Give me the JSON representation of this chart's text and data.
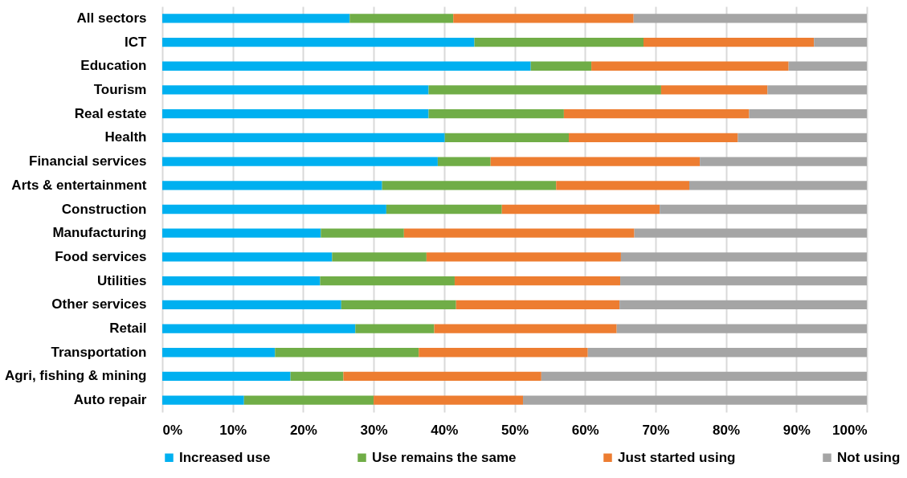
{
  "chart_data": {
    "type": "bar",
    "orientation": "horizontal",
    "stacked": true,
    "categories": [
      "All sectors",
      "ICT",
      "Education",
      "Tourism",
      "Real estate",
      "Health",
      "Financial services",
      "Arts & entertainment",
      "Construction",
      "Manufacturing",
      "Food services",
      "Utilities",
      "Other services",
      "Retail",
      "Transportation",
      "Agri, fishing & mining",
      "Auto repair"
    ],
    "series": [
      {
        "name": "Increased use",
        "color": "#00b0f0",
        "values": [
          26.6,
          44.3,
          52.3,
          37.8,
          37.8,
          40.1,
          39.1,
          31.2,
          31.8,
          22.5,
          24.1,
          22.4,
          25.4,
          27.4,
          16.0,
          18.2,
          11.6
        ]
      },
      {
        "name": "Use remains the same",
        "color": "#70ad47",
        "values": [
          14.7,
          24.0,
          8.6,
          33.0,
          19.2,
          17.6,
          7.5,
          24.7,
          16.4,
          11.8,
          13.4,
          19.1,
          16.3,
          11.2,
          20.4,
          7.5,
          18.4
        ]
      },
      {
        "name": "Just started using",
        "color": "#ed7d31",
        "values": [
          25.6,
          24.2,
          28.0,
          15.1,
          26.3,
          24.0,
          29.7,
          18.9,
          22.4,
          32.7,
          27.6,
          23.5,
          23.2,
          25.9,
          24.0,
          28.1,
          21.2
        ]
      },
      {
        "name": "Not using",
        "color": "#a5a5a5",
        "values": [
          33.1,
          7.5,
          11.1,
          14.1,
          16.7,
          18.3,
          23.7,
          25.2,
          29.4,
          33.0,
          34.9,
          35.0,
          35.1,
          35.5,
          39.6,
          46.2,
          48.8
        ]
      }
    ],
    "xlim": [
      0,
      100
    ],
    "xticks": [
      {
        "value": 0,
        "label": "0%"
      },
      {
        "value": 10,
        "label": "10%"
      },
      {
        "value": 20,
        "label": "20%"
      },
      {
        "value": 30,
        "label": "30%"
      },
      {
        "value": 40,
        "label": "40%"
      },
      {
        "value": 50,
        "label": "50%"
      },
      {
        "value": 60,
        "label": "60%"
      },
      {
        "value": 70,
        "label": "70%"
      },
      {
        "value": 80,
        "label": "80%"
      },
      {
        "value": 90,
        "label": "90%"
      },
      {
        "value": 100,
        "label": "100%"
      }
    ],
    "grid": "x",
    "legend": "bottom"
  }
}
